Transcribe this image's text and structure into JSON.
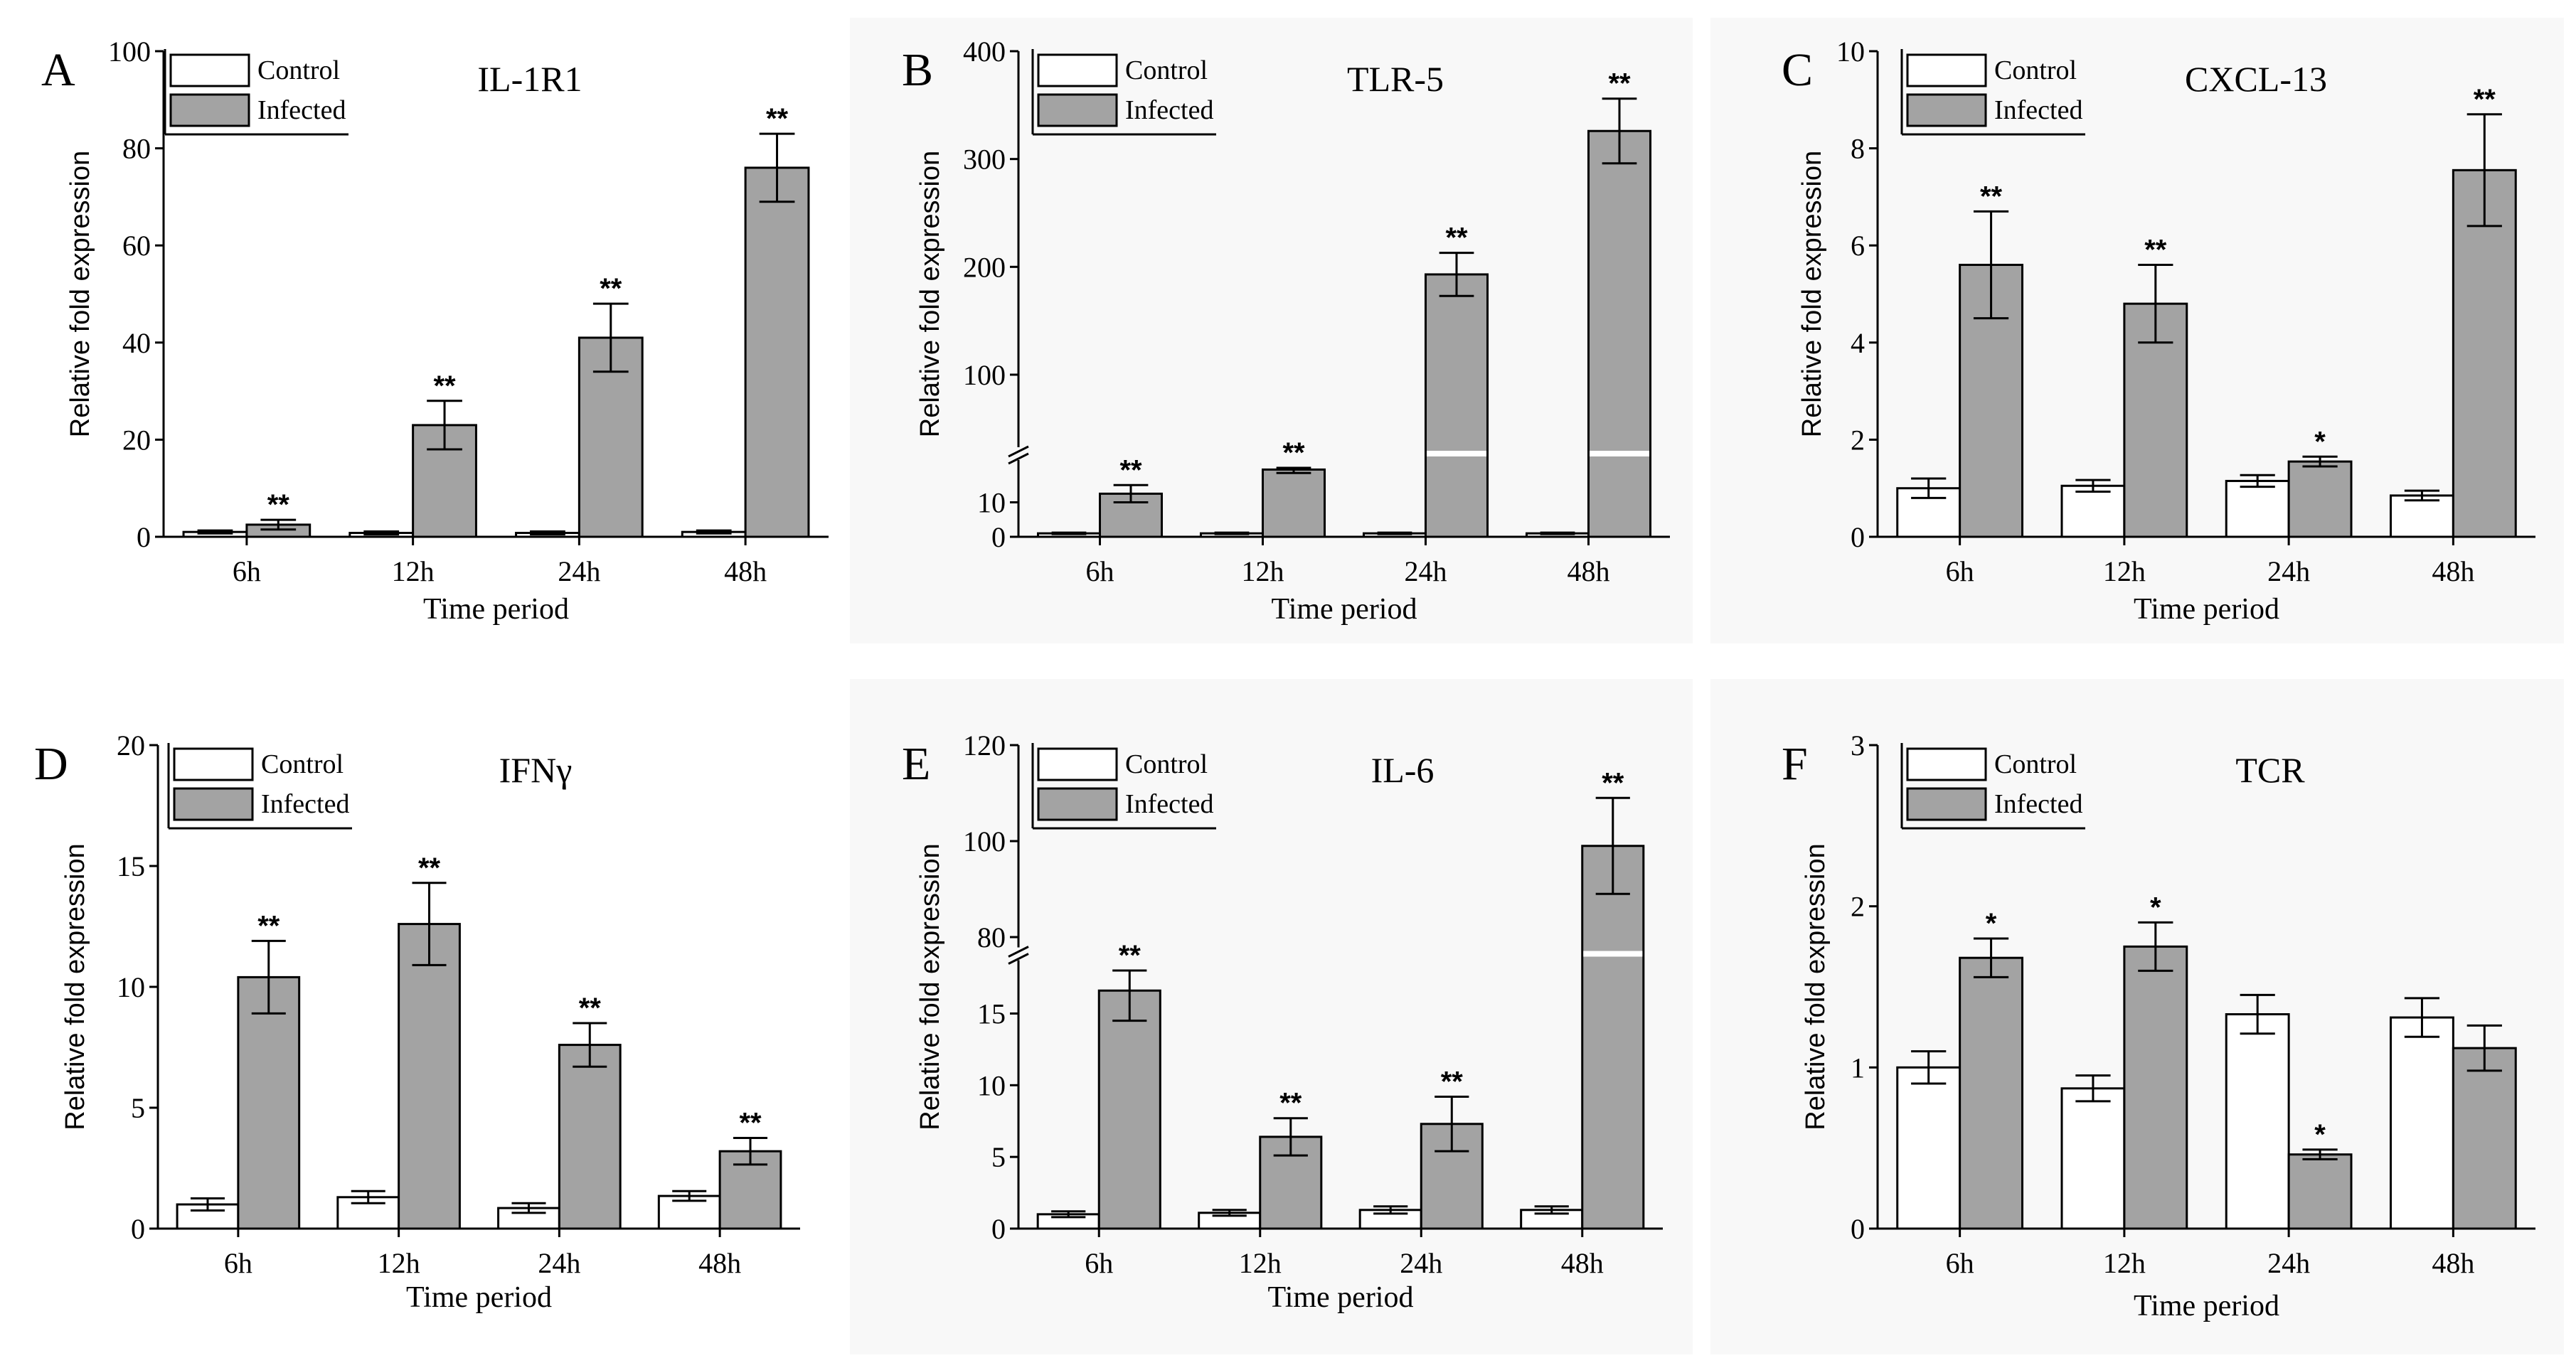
{
  "chart_data": [
    {
      "type": "bar",
      "panel": "A",
      "title": "IL-1R1",
      "xlabel": "Time period",
      "ylabel": "Relative fold expression",
      "categories": [
        "6h",
        "12h",
        "24h",
        "48h"
      ],
      "ylim": [
        0,
        100
      ],
      "yticks": [
        0,
        20,
        40,
        60,
        80,
        100
      ],
      "legend": [
        "Control",
        "Infected"
      ],
      "series": [
        {
          "name": "Control",
          "values": [
            1,
            0.8,
            0.8,
            1
          ],
          "errors": [
            0.3,
            0.3,
            0.3,
            0.3
          ],
          "sig": [
            "",
            "",
            "",
            ""
          ]
        },
        {
          "name": "Infected",
          "values": [
            2.5,
            23,
            41,
            76
          ],
          "errors": [
            1,
            5,
            7,
            7
          ],
          "sig": [
            "**",
            "**",
            "**",
            "**"
          ]
        }
      ]
    },
    {
      "type": "bar",
      "panel": "B",
      "title": "TLR-5",
      "xlabel": "Time period",
      "ylabel": "Relative fold expression",
      "categories": [
        "6h",
        "12h",
        "24h",
        "48h"
      ],
      "ylim": [
        0,
        400
      ],
      "yticks": [
        0,
        10,
        100,
        200,
        300,
        400
      ],
      "axis_break": [
        20,
        40
      ],
      "legend": [
        "Control",
        "Infected"
      ],
      "series": [
        {
          "name": "Control",
          "values": [
            1,
            1,
            1,
            1
          ],
          "errors": [
            0.2,
            0.2,
            0.2,
            0.2
          ],
          "sig": [
            "",
            "",
            "",
            ""
          ]
        },
        {
          "name": "Infected",
          "values": [
            12.5,
            19.5,
            193,
            326
          ],
          "errors": [
            2.5,
            1,
            20,
            30
          ],
          "sig": [
            "**",
            "**",
            "**",
            "**"
          ]
        }
      ]
    },
    {
      "type": "bar",
      "panel": "C",
      "title": "CXCL-13",
      "xlabel": "Time period",
      "ylabel": "Relative fold expression",
      "categories": [
        "6h",
        "12h",
        "24h",
        "48h"
      ],
      "ylim": [
        0,
        10
      ],
      "yticks": [
        0,
        2,
        4,
        6,
        8,
        10
      ],
      "legend": [
        "Control",
        "Infected"
      ],
      "series": [
        {
          "name": "Control",
          "values": [
            1,
            1.05,
            1.15,
            0.85
          ],
          "errors": [
            0.2,
            0.12,
            0.12,
            0.1
          ],
          "sig": [
            "",
            "",
            "",
            ""
          ]
        },
        {
          "name": "Infected",
          "values": [
            5.6,
            4.8,
            1.55,
            7.55
          ],
          "errors": [
            1.1,
            0.8,
            0.1,
            1.15
          ],
          "sig": [
            "**",
            "**",
            "*",
            "**"
          ]
        }
      ]
    },
    {
      "type": "bar",
      "panel": "D",
      "title": "IFNγ",
      "xlabel": "Time period",
      "ylabel": "Relative fold expression",
      "categories": [
        "6h",
        "12h",
        "24h",
        "48h"
      ],
      "ylim": [
        0,
        20
      ],
      "yticks": [
        0,
        5,
        10,
        15,
        20
      ],
      "legend": [
        "Control",
        "Infected"
      ],
      "series": [
        {
          "name": "Control",
          "values": [
            1,
            1.3,
            0.85,
            1.35
          ],
          "errors": [
            0.25,
            0.25,
            0.2,
            0.2
          ],
          "sig": [
            "",
            "",
            "",
            ""
          ]
        },
        {
          "name": "Infected",
          "values": [
            10.4,
            12.6,
            7.6,
            3.2
          ],
          "errors": [
            1.5,
            1.7,
            0.9,
            0.55
          ],
          "sig": [
            "**",
            "**",
            "**",
            "**"
          ]
        }
      ]
    },
    {
      "type": "bar",
      "panel": "E",
      "title": "IL-6",
      "xlabel": "Time period",
      "ylabel": "Relative fold expression",
      "categories": [
        "6h",
        "12h",
        "24h",
        "48h"
      ],
      "ylim": [
        0,
        120
      ],
      "yticks": [
        0,
        5,
        10,
        15,
        80,
        100,
        120
      ],
      "axis_break": [
        18,
        80
      ],
      "legend": [
        "Control",
        "Infected"
      ],
      "series": [
        {
          "name": "Control",
          "values": [
            1,
            1.1,
            1.3,
            1.3
          ],
          "errors": [
            0.2,
            0.2,
            0.25,
            0.25
          ],
          "sig": [
            "",
            "",
            "",
            ""
          ]
        },
        {
          "name": "Infected",
          "values": [
            16.6,
            6.4,
            7.3,
            99
          ],
          "errors": [
            2.1,
            1.3,
            1.9,
            10
          ],
          "sig": [
            "**",
            "**",
            "**",
            "**"
          ]
        }
      ]
    },
    {
      "type": "bar",
      "panel": "F",
      "title": "TCR",
      "xlabel": "Time period",
      "ylabel": "Relative fold expression",
      "categories": [
        "6h",
        "12h",
        "24h",
        "48h"
      ],
      "ylim": [
        0,
        3
      ],
      "yticks": [
        0,
        1,
        2,
        3
      ],
      "legend": [
        "Control",
        "Infected"
      ],
      "series": [
        {
          "name": "Control",
          "values": [
            1,
            0.87,
            1.33,
            1.31
          ],
          "errors": [
            0.1,
            0.08,
            0.12,
            0.12
          ],
          "sig": [
            "",
            "",
            "",
            ""
          ]
        },
        {
          "name": "Infected",
          "values": [
            1.68,
            1.75,
            0.46,
            1.12
          ],
          "errors": [
            0.12,
            0.15,
            0.03,
            0.14
          ],
          "sig": [
            "*",
            "*",
            "*",
            ""
          ]
        }
      ]
    }
  ]
}
